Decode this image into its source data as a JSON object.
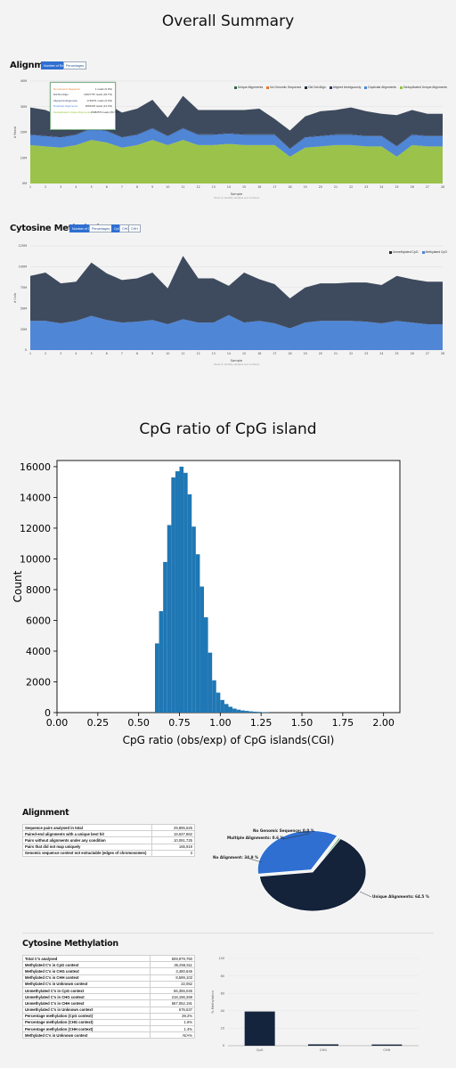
{
  "overall_summary_title": "Overall Summary",
  "alignment_panel": {
    "title": "Alignment",
    "buttons": [
      "Number of Reads",
      "Percentages"
    ],
    "legend": [
      {
        "label": "Unique Alignments",
        "color": "#2f6b46"
      },
      {
        "label": "No Genomic Sequence",
        "color": "#e6772e"
      },
      {
        "label": "Did Not Align",
        "color": "#1f2d40"
      },
      {
        "label": "Aligned Ambiguously",
        "color": "#2b3a67"
      },
      {
        "label": "Duplicate Alignments",
        "color": "#4f86d6"
      },
      {
        "label": "Deduplicated Unique Alignments",
        "color": "#94c33e"
      }
    ],
    "y_label": "# Reads",
    "y_ticks": [
      "40M",
      "30M",
      "20M",
      "10M",
      "0M"
    ],
    "x_label": "Sample",
    "x_note": "Hover to identify samples and numbers",
    "tooltip": [
      {
        "label": "No Genomic Sequence",
        "value": "1 reads",
        "pct": "(0.0%)",
        "color": "#e6772e"
      },
      {
        "label": "Did Not Align",
        "value": "10027767 reads",
        "pct": "(33.7%)",
        "color": "#1f2d40"
      },
      {
        "label": "Aligned Ambiguously",
        "value": "1749271 reads",
        "pct": "(6.0%)",
        "color": "#2b3a67"
      },
      {
        "label": "Duplicate Alignments",
        "value": "3663218 reads",
        "pct": "(12.3%)",
        "color": "#4f86d6"
      },
      {
        "label": "Deduplicated Unique Alignments",
        "value": "15082570 reads",
        "pct": "(50.7%)",
        "color": "#94c33e"
      }
    ]
  },
  "methylation_panel": {
    "title": "Cytosine Methylation",
    "buttons": [
      "Number of C's",
      "Percentages"
    ],
    "context_buttons": [
      "CpG",
      "CHG",
      "CHH"
    ],
    "legend": [
      {
        "label": "Unmethylated CpG",
        "color": "#222b36"
      },
      {
        "label": "Methylated CpG",
        "color": "#4f86d6"
      }
    ],
    "y_label": "# Calls",
    "y_ticks": [
      "125M",
      "100M",
      "75M",
      "50M",
      "25M",
      "0"
    ],
    "x_label": "Sample",
    "x_note": "Hover to identify samples and numbers"
  },
  "cpg_title": "CpG ratio of CpG island",
  "alignment_section": {
    "title": "Alignment",
    "rows": [
      {
        "label": "Sequence pairs analysed in total",
        "value": "29,895,526"
      },
      {
        "label": "Paired-end alignments with a unique best hit",
        "value": "18,637,862"
      },
      {
        "label": "Pairs without alignments under any condition",
        "value": "10,091,725"
      },
      {
        "label": "Pairs that did not map uniquely",
        "value": "165,919"
      },
      {
        "label": "Genomic sequence context not extractable (edges of chromosomes)",
        "value": "3"
      }
    ],
    "pie_labels": [
      {
        "label": "No Genomic Sequence: 0.0 %"
      },
      {
        "label": "Multiple Alignments: 0.6 %"
      },
      {
        "label": "No Alignment: 34.9 %"
      },
      {
        "label": "Unique Alignments: 64.5 %"
      }
    ]
  },
  "methylation_section": {
    "title": "Cytosine Methylation",
    "rows": [
      {
        "label": "Total C's analysed",
        "value": "509,979,760"
      },
      {
        "label": "Methylated C's in CpG context",
        "value": "36,256,511"
      },
      {
        "label": "Methylated C's in CHG context",
        "value": "3,480,645"
      },
      {
        "label": "Methylated C's in CHH context",
        "value": "8,599,103"
      },
      {
        "label": "Methylated C's in Unknown context",
        "value": "22,052"
      },
      {
        "label": "Unmethylated C's in CpG context",
        "value": "56,355,046",
        "sep": true
      },
      {
        "label": "Unmethylated C's in CHG context",
        "value": "218,196,269"
      },
      {
        "label": "Unmethylated C's in CHH context",
        "value": "567,052,191"
      },
      {
        "label": "Unmethylated C's in Unknown context",
        "value": "676,537"
      },
      {
        "label": "Percentage methylation (CpG context)",
        "value": "39.2%",
        "sep": true
      },
      {
        "label": "Percentage methylation (CHG context)",
        "value": "1.6%"
      },
      {
        "label": "Percentage methylation (CHH context)",
        "value": "1.4%"
      },
      {
        "label": "Methylated C's in Unknown context",
        "value": "N/A%",
        "sep": true
      }
    ]
  },
  "chart_data": [
    {
      "type": "area",
      "x": [
        1,
        2,
        3,
        4,
        5,
        6,
        7,
        8,
        9,
        10,
        11,
        12,
        13,
        14,
        15,
        16,
        17,
        18,
        19,
        20,
        21,
        22,
        23,
        24,
        25,
        26,
        27,
        28
      ],
      "x_ticks": [
        "1",
        "2",
        "3",
        "4",
        "5",
        "6",
        "7",
        "8",
        "9",
        "10",
        "11",
        "12",
        "13",
        "14",
        "15",
        "16",
        "17",
        "18",
        "19",
        "20",
        "21",
        "22",
        "23",
        "24",
        "25",
        "26",
        "27",
        "28"
      ],
      "ylim": [
        0,
        40
      ],
      "series": [
        {
          "name": "Deduplicated Unique Alignments",
          "values": [
            15,
            14.5,
            14,
            15,
            17,
            16,
            14,
            15,
            17,
            15,
            17,
            15,
            15,
            15.5,
            15,
            15,
            15,
            10.5,
            14,
            14.5,
            15,
            15,
            14.5,
            14.5,
            10.5,
            15,
            14.5,
            14.5
          ]
        },
        {
          "name": "Duplicate Alignments",
          "values": [
            4,
            4,
            4,
            4,
            4.5,
            4.5,
            4,
            4,
            4.5,
            3.5,
            4.5,
            4,
            4,
            4,
            4,
            4,
            4,
            3,
            4,
            4,
            4,
            4,
            4,
            4,
            4,
            4,
            4,
            4
          ]
        },
        {
          "name": "Aligned Ambiguously",
          "values": [
            0.2,
            0.2,
            0.2,
            0.2,
            0.2,
            0.2,
            0.2,
            0.2,
            0.2,
            0.2,
            0.2,
            0.2,
            0.2,
            0.2,
            0.2,
            0.2,
            0.2,
            0.2,
            0.2,
            0.2,
            0.2,
            0.2,
            0.2,
            0.2,
            0.2,
            0.2,
            0.2,
            0.2
          ]
        },
        {
          "name": "Did Not Align",
          "values": [
            10.5,
            10,
            8,
            9.5,
            11,
            10.5,
            9.5,
            10,
            11,
            7,
            12.5,
            9.5,
            9.5,
            9,
            9.5,
            10,
            6,
            7,
            8,
            9.5,
            9.5,
            10.5,
            9.5,
            8.5,
            12,
            9.5,
            8.5,
            8.5
          ]
        }
      ]
    },
    {
      "type": "area",
      "x": [
        1,
        2,
        3,
        4,
        5,
        6,
        7,
        8,
        9,
        10,
        11,
        12,
        13,
        14,
        15,
        16,
        17,
        18,
        19,
        20,
        21,
        22,
        23,
        24,
        25,
        26,
        27,
        28
      ],
      "x_ticks": [
        "1",
        "2",
        "3",
        "4",
        "5",
        "6",
        "7",
        "8",
        "9",
        "10",
        "11",
        "12",
        "13",
        "14",
        "15",
        "16",
        "17",
        "18",
        "19",
        "20",
        "21",
        "22",
        "23",
        "24",
        "25",
        "26",
        "27",
        "28"
      ],
      "ylim": [
        0,
        125
      ],
      "series": [
        {
          "name": "Methylated CpG",
          "values": [
            35,
            35,
            32,
            35,
            41,
            36,
            33,
            34,
            36,
            31,
            37,
            33,
            33,
            42,
            33,
            35,
            32,
            26,
            33,
            35,
            35,
            35,
            34,
            32,
            35,
            33,
            31,
            31
          ]
        },
        {
          "name": "Unmethylated CpG",
          "values": [
            54,
            58,
            48,
            47,
            64,
            56,
            51,
            52,
            57,
            43,
            76,
            53,
            53,
            35,
            60,
            50,
            47,
            36,
            42,
            45,
            45,
            46,
            47,
            46,
            54,
            52,
            51,
            51
          ]
        }
      ]
    },
    {
      "type": "bar",
      "title": "",
      "xlabel": "CpG ratio (obs/exp) of CpG islands(CGI)",
      "ylabel": "Count",
      "xlim": [
        0,
        2.1
      ],
      "ylim": [
        0,
        16400
      ],
      "x_ticks": [
        "0.00",
        "0.25",
        "0.50",
        "0.75",
        "1.00",
        "1.25",
        "1.50",
        "1.75",
        "2.00"
      ],
      "y_ticks": [
        "0",
        "2000",
        "4000",
        "6000",
        "8000",
        "10000",
        "12000",
        "14000",
        "16000"
      ],
      "bin_width": 0.025,
      "bin_starts": [
        0.6,
        0.625,
        0.65,
        0.675,
        0.7,
        0.725,
        0.75,
        0.775,
        0.8,
        0.825,
        0.85,
        0.875,
        0.9,
        0.925,
        0.95,
        0.975,
        1.0,
        1.025,
        1.05,
        1.075,
        1.1,
        1.125,
        1.15,
        1.175,
        1.2,
        1.225,
        1.25,
        1.275
      ],
      "values": [
        4500,
        6600,
        9800,
        12200,
        15300,
        15700,
        16000,
        15600,
        14200,
        12100,
        10300,
        8200,
        6200,
        3900,
        2100,
        1300,
        820,
        560,
        380,
        260,
        190,
        140,
        110,
        80,
        60,
        45,
        30,
        20
      ]
    },
    {
      "type": "pie",
      "labels": [
        "Unique Alignments",
        "No Alignment",
        "Multiple Alignments",
        "No Genomic Sequence"
      ],
      "values": [
        64.5,
        34.9,
        0.6,
        0.0
      ]
    },
    {
      "type": "bar",
      "categories": [
        "CpG",
        "CHG",
        "CHH"
      ],
      "values": [
        39.2,
        1.6,
        1.4
      ],
      "ylabel": "% Methylation",
      "ylim": [
        0,
        100
      ],
      "y_ticks": [
        "100",
        "80",
        "60",
        "40",
        "20",
        "0"
      ]
    }
  ]
}
